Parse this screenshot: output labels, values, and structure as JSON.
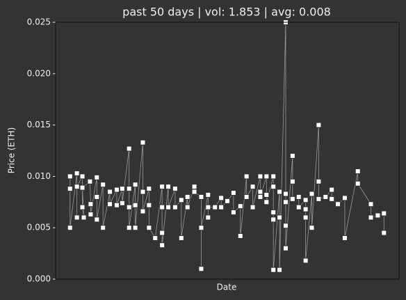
{
  "chart_data": {
    "type": "line",
    "title": "past 50 days | vol: 1.853 | avg: 0.008",
    "xlabel": "Date",
    "ylabel": "Price (ETH)",
    "x": [
      2.1,
      2.1,
      2.1,
      3.1,
      3.1,
      3.1,
      3.9,
      3.9,
      4.1,
      3.9,
      5.0,
      5.1,
      5.1,
      6.0,
      6.0,
      6.0,
      6.9,
      6.9,
      7.9,
      7.9,
      8.9,
      8.9,
      9.7,
      9.7,
      10.7,
      10.7,
      10.7,
      10.7,
      11.6,
      11.6,
      11.6,
      12.7,
      12.7,
      12.7,
      13.6,
      13.6,
      13.6,
      14.5,
      15.5,
      15.5,
      15.5,
      15.5,
      16.4,
      16.4,
      17.4,
      17.4,
      18.3,
      18.3,
      19.2,
      19.2,
      20.2,
      20.2,
      21.2,
      21.2,
      21.2,
      22.2,
      22.2,
      22.2,
      23.2,
      24.1,
      24.1,
      25.0,
      25.9,
      25.9,
      26.9,
      26.9,
      27.8,
      27.8,
      28.7,
      28.7,
      29.8,
      29.8,
      29.8,
      30.7,
      30.7,
      30.7,
      31.7,
      31.7,
      31.7,
      31.7,
      31.7,
      32.6,
      32.6,
      32.6,
      33.5,
      33.5,
      33.5,
      33.5,
      33.5,
      34.5,
      34.5,
      34.5,
      35.4,
      35.4,
      36.4,
      36.4,
      36.4,
      36.4,
      37.3,
      37.3,
      38.3,
      38.3,
      38.3,
      39.3,
      40.2,
      40.2,
      41.1,
      42.1,
      42.1,
      44.0,
      44.0,
      45.9,
      45.9,
      46.9,
      47.8,
      47.8
    ],
    "values": [
      0.01,
      0.0088,
      0.005,
      0.0103,
      0.006,
      0.009,
      0.01,
      0.007,
      0.006,
      0.0089,
      0.0095,
      0.0073,
      0.0063,
      0.0099,
      0.008,
      0.0058,
      0.0092,
      0.005,
      0.0085,
      0.0073,
      0.0087,
      0.0072,
      0.0088,
      0.0074,
      0.0127,
      0.0088,
      0.007,
      0.005,
      0.0092,
      0.0072,
      0.005,
      0.0133,
      0.0085,
      0.0066,
      0.0088,
      0.0072,
      0.005,
      0.004,
      0.009,
      0.007,
      0.0045,
      0.0033,
      0.009,
      0.007,
      0.0088,
      0.007,
      0.0077,
      0.004,
      0.008,
      0.007,
      0.009,
      0.0085,
      0.008,
      0.001,
      0.005,
      0.0082,
      0.006,
      0.007,
      0.007,
      0.0079,
      0.007,
      0.0076,
      0.0084,
      0.0065,
      0.0071,
      0.0042,
      0.01,
      0.008,
      0.009,
      0.007,
      0.01,
      0.0085,
      0.008,
      0.01,
      0.0082,
      0.0075,
      0.01,
      0.009,
      0.0065,
      0.0058,
      0.0009,
      0.0085,
      0.006,
      0.0009,
      0.025,
      0.0083,
      0.0075,
      0.0052,
      0.003,
      0.012,
      0.0095,
      0.0078,
      0.008,
      0.007,
      0.0077,
      0.0068,
      0.006,
      0.0018,
      0.0083,
      0.005,
      0.015,
      0.0095,
      0.0078,
      0.008,
      0.0087,
      0.0078,
      0.0073,
      0.0079,
      0.004,
      0.0105,
      0.0093,
      0.0073,
      0.006,
      0.0062,
      0.0064,
      0.0045
    ],
    "color": "#9a9a9a",
    "marker_color": "#ffffff",
    "xlim": [
      0,
      50
    ],
    "ylim": [
      0,
      0.025
    ],
    "yticks": [
      {
        "value": 0,
        "label": "0.000"
      },
      {
        "value": 0.005,
        "label": "0.005"
      },
      {
        "value": 0.01,
        "label": "0.010"
      },
      {
        "value": 0.015,
        "label": "0.015"
      },
      {
        "value": 0.02,
        "label": "0.020"
      },
      {
        "value": 0.025,
        "label": "0.025"
      }
    ]
  }
}
